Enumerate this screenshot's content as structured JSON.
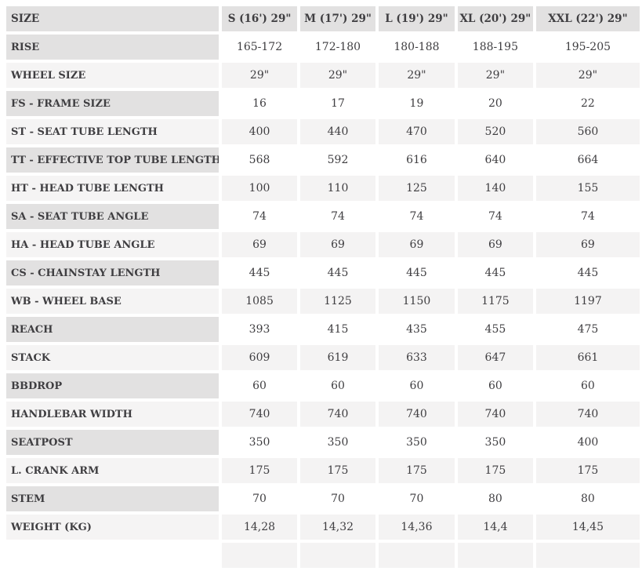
{
  "colors": {
    "header_bg": "#e2e1e1",
    "light_label_bg": "#f5f4f4",
    "gray_value_bg": "#f4f3f3",
    "white_value_bg": "#ffffff",
    "text_color": "#3f3e41",
    "page_bg": "#ffffff"
  },
  "table": {
    "header": {
      "label": "SIZE",
      "columns": [
        "S (16') 29\"",
        "M (17') 29\"",
        "L (19') 29\"",
        "XL (20') 29\"",
        "XXL (22') 29\""
      ]
    },
    "rows": [
      {
        "label": "RISE",
        "values": [
          "165-172",
          "172-180",
          "180-188",
          "188-195",
          "195-205"
        ]
      },
      {
        "label": "WHEEL SIZE",
        "values": [
          "29\"",
          "29\"",
          "29\"",
          "29\"",
          "29\""
        ]
      },
      {
        "label": "FS - FRAME SIZE",
        "values": [
          "16",
          "17",
          "19",
          "20",
          "22"
        ]
      },
      {
        "label": "ST - SEAT TUBE LENGTH",
        "values": [
          "400",
          "440",
          "470",
          "520",
          "560"
        ]
      },
      {
        "label": "TT - EFFECTIVE TOP TUBE LENGTH",
        "values": [
          "568",
          "592",
          "616",
          "640",
          "664"
        ]
      },
      {
        "label": "HT - HEAD TUBE LENGTH",
        "values": [
          "100",
          "110",
          "125",
          "140",
          "155"
        ]
      },
      {
        "label": "SA - SEAT TUBE ANGLE",
        "values": [
          "74",
          "74",
          "74",
          "74",
          "74"
        ]
      },
      {
        "label": "HA - HEAD TUBE ANGLE",
        "values": [
          "69",
          "69",
          "69",
          "69",
          "69"
        ]
      },
      {
        "label": "CS - CHAINSTAY LENGTH",
        "values": [
          "445",
          "445",
          "445",
          "445",
          "445"
        ]
      },
      {
        "label": "WB - WHEEL BASE",
        "values": [
          "1085",
          "1125",
          "1150",
          "1175",
          "1197"
        ]
      },
      {
        "label": "REACH",
        "values": [
          "393",
          "415",
          "435",
          "455",
          "475"
        ]
      },
      {
        "label": "STACK",
        "values": [
          "609",
          "619",
          "633",
          "647",
          "661"
        ]
      },
      {
        "label": "BBDROP",
        "values": [
          "60",
          "60",
          "60",
          "60",
          "60"
        ]
      },
      {
        "label": "HANDLEBAR WIDTH",
        "values": [
          "740",
          "740",
          "740",
          "740",
          "740"
        ]
      },
      {
        "label": "SEATPOST",
        "values": [
          "350",
          "350",
          "350",
          "350",
          "400"
        ]
      },
      {
        "label": "L. CRANK ARM",
        "values": [
          "175",
          "175",
          "175",
          "175",
          "175"
        ]
      },
      {
        "label": "STEM",
        "values": [
          "70",
          "70",
          "70",
          "80",
          "80"
        ]
      },
      {
        "label": "WEIGHT (KG)",
        "values": [
          "14,28",
          "14,32",
          "14,36",
          "14,4",
          "14,45"
        ]
      }
    ]
  }
}
